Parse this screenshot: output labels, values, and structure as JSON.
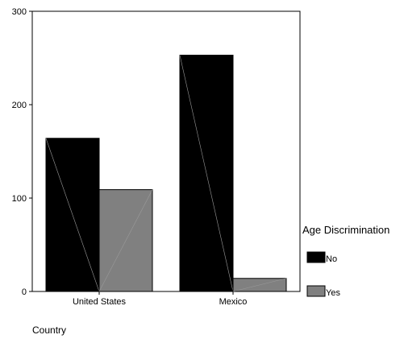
{
  "chart_data": {
    "type": "bar",
    "categories": [
      "United States",
      "Mexico"
    ],
    "series": [
      {
        "name": "No",
        "values": [
          164,
          253
        ],
        "color": "#000000"
      },
      {
        "name": "Yes",
        "values": [
          109,
          14
        ],
        "color": "#808080"
      }
    ],
    "xlabel": "Country",
    "ylabel": "",
    "ylim": [
      0,
      300
    ],
    "yticks": [
      0,
      100,
      200,
      300
    ],
    "grid": false,
    "legend": {
      "title": "Age Discrimination",
      "placement": "right"
    }
  }
}
